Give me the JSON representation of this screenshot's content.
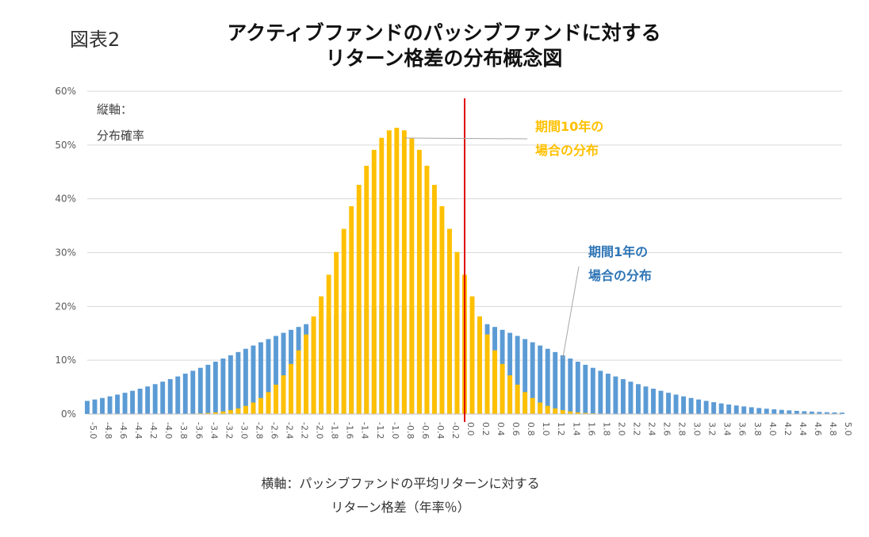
{
  "figure": {
    "label": "図表2",
    "title_line1": "アクティブファンドのパッシブファンドに対する",
    "title_line2": "リターン格差の分布概念図"
  },
  "chart_data": {
    "type": "bar",
    "title": "アクティブファンドのパッシブファンドに対するリターン格差の分布概念図",
    "ylabel_lines": [
      "縦軸：",
      "分布確率"
    ],
    "xlabel_lines": [
      "横軸：パッシブファンドの平均リターンに対する",
      "リターン格差（年率％）"
    ],
    "ylim": [
      0,
      60
    ],
    "yticks": [
      0,
      10,
      20,
      30,
      40,
      50,
      60
    ],
    "ytick_labels": [
      "0%",
      "10%",
      "20%",
      "30%",
      "40%",
      "50%",
      "60%"
    ],
    "x_range": [
      -5.0,
      5.0
    ],
    "x_step": 0.1,
    "x_tick_labels": [
      "-5.0",
      "-4.8",
      "-4.6",
      "-4.4",
      "-4.2",
      "-4.0",
      "-3.8",
      "-3.6",
      "-3.4",
      "-3.2",
      "-3.0",
      "-2.8",
      "-2.6",
      "-2.4",
      "-2.2",
      "-2.0",
      "-1.8",
      "-1.6",
      "-1.4",
      "-1.2",
      "-1.0",
      "-0.8",
      "-0.6",
      "-0.4",
      "-0.2",
      "0.0",
      "0.2",
      "0.4",
      "0.6",
      "0.8",
      "1.0",
      "1.2",
      "1.4",
      "1.6",
      "1.8",
      "2.0",
      "2.2",
      "2.4",
      "2.6",
      "2.8",
      "3.0",
      "3.2",
      "3.4",
      "3.6",
      "3.8",
      "4.0",
      "4.2",
      "4.4",
      "4.6",
      "4.8",
      "5.0"
    ],
    "reference_line_x": 0.0,
    "series": [
      {
        "name": "期間1年の場合の分布",
        "color": "#5b9bd5",
        "distribution": "normal",
        "mean": -0.9,
        "sd": 2.0,
        "peak": 20.0
      },
      {
        "name": "期間10年の場合の分布",
        "color": "#ffc000",
        "distribution": "normal",
        "mean": -0.9,
        "sd": 0.75,
        "peak": 53.2
      }
    ],
    "annotations": [
      {
        "lines": [
          "期間10年の",
          "場合の分布"
        ],
        "color": "#ffc000",
        "points_to_x": -0.8
      },
      {
        "lines": [
          "期間1年の",
          "場合の分布"
        ],
        "color": "#2e75b6",
        "points_to_x": 1.3
      }
    ]
  }
}
